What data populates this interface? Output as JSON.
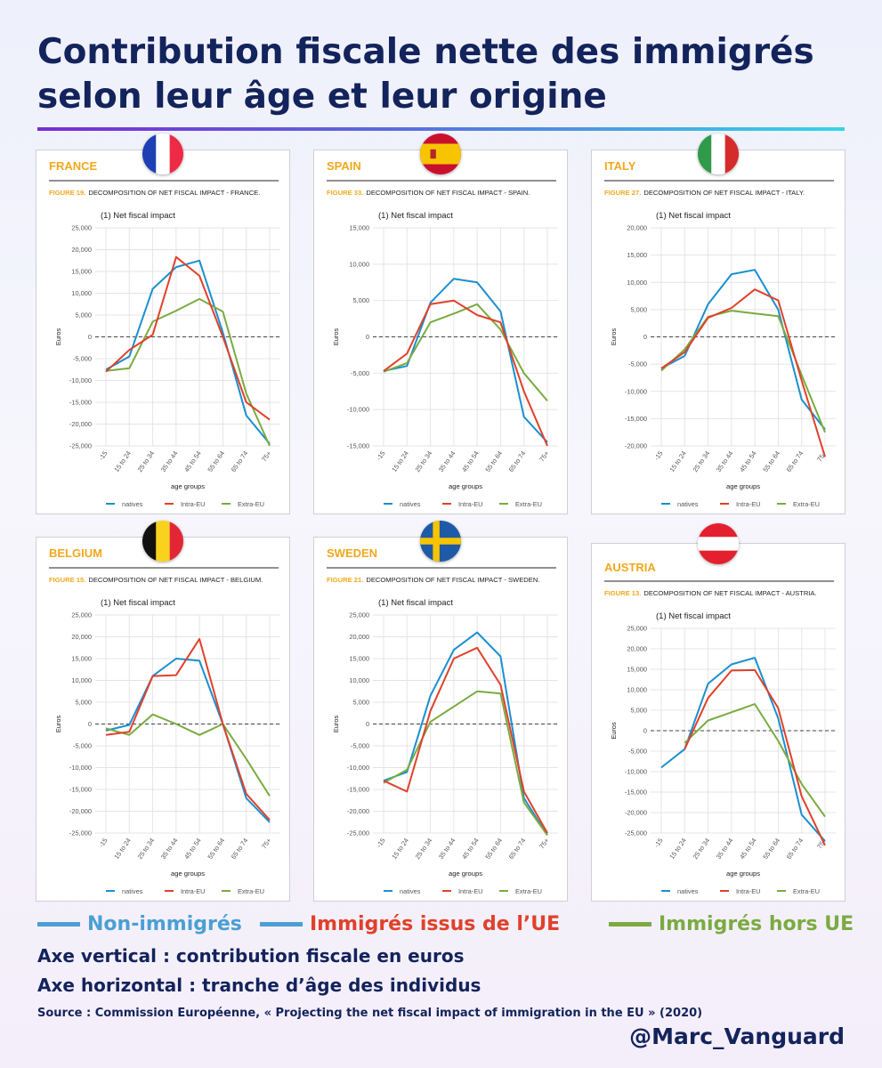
{
  "title_line1": "Contribution fiscale nette des immigrés",
  "title_line2": "selon leur âge et leur origine",
  "colors": {
    "natives": "#1a8fd0",
    "intra_eu": "#e0412a",
    "extra_eu": "#7aab41",
    "navy": "#13235b",
    "orange": "#f0a81c"
  },
  "legend": {
    "natives": "Non-immigrés",
    "intra_eu": "Immigrés issus de l’UE",
    "extra_eu": "Immigrés hors UE"
  },
  "axis_vertical": "Axe vertical : contribution fiscale en euros",
  "axis_horizontal": "Axe horizontal : tranche d’âge des individus",
  "source": "Source : Commission Européenne, « Projecting the net fiscal impact of immigration in the EU » (2020)",
  "handle": "@Marc_Vanguard",
  "chart_data": [
    {
      "type": "line",
      "country": "FRANCE",
      "flag": "france",
      "figure_number": "FIGURE 19.",
      "figure_text": "DECOMPOSITION OF NET FISCAL IMPACT - FRANCE.",
      "subtitle": "(1) Net fiscal impact",
      "ylabel": "Euros",
      "xlabel": "age groups",
      "categories": [
        "-15",
        "15 to 24",
        "25 to 34",
        "35 to 44",
        "45 to 54",
        "55 to 64",
        "65 to 74",
        "75+"
      ],
      "yticks": [
        25000,
        20000,
        15000,
        10000,
        5000,
        0,
        -5000,
        -10000,
        -15000,
        -20000,
        -25000
      ],
      "ytick_labels": [
        "25,000",
        "20,000",
        "15,000",
        "10,000",
        "5,000",
        "0",
        "-5,000",
        "-10,000",
        "-15,000",
        "-20,000",
        "-25,000"
      ],
      "ylim": [
        -25000,
        25000
      ],
      "series": [
        {
          "name": "natives",
          "values": [
            -7500,
            -4500,
            11000,
            16000,
            17500,
            1000,
            -18000,
            -24500
          ]
        },
        {
          "name": "Intra-EU",
          "values": [
            -8000,
            -3000,
            500,
            18300,
            14000,
            0,
            -15000,
            -19000
          ]
        },
        {
          "name": "Extra-EU",
          "values": [
            -7800,
            -7200,
            3500,
            6000,
            8700,
            5800,
            -13000,
            -25000
          ]
        }
      ],
      "reference_line": 0
    },
    {
      "type": "line",
      "country": "SPAIN",
      "flag": "spain",
      "figure_number": "FIGURE 33.",
      "figure_text": "DECOMPOSITION OF NET FISCAL IMPACT - SPAIN.",
      "subtitle": "(1) Net fiscal impact",
      "ylabel": "Euros",
      "xlabel": "age groups",
      "categories": [
        "-15",
        "15 to 24",
        "25 to 34",
        "35 to 44",
        "45 to 54",
        "55 to 64",
        "65 to 74",
        "75+"
      ],
      "yticks": [
        15000,
        10000,
        5000,
        0,
        -5000,
        -10000,
        -15000
      ],
      "ytick_labels": [
        "15,000",
        "10,000",
        "5,000",
        "0",
        "-5,000",
        "-10,000",
        "-15,000"
      ],
      "ylim": [
        -15000,
        15000
      ],
      "series": [
        {
          "name": "natives",
          "values": [
            -4700,
            -4000,
            4700,
            8000,
            7500,
            3500,
            -11000,
            -14500
          ]
        },
        {
          "name": "Intra-EU",
          "values": [
            -4700,
            -2300,
            4500,
            5000,
            3000,
            2000,
            -7500,
            -15000
          ]
        },
        {
          "name": "Extra-EU",
          "values": [
            -4800,
            -3600,
            2000,
            3200,
            4500,
            1000,
            -5000,
            -8800
          ]
        }
      ],
      "reference_line": 0
    },
    {
      "type": "line",
      "country": "ITALY",
      "flag": "italy",
      "figure_number": "FIGURE 27.",
      "figure_text": "DECOMPOSITION OF NET FISCAL IMPACT - ITALY.",
      "subtitle": "(1) Net fiscal impact",
      "ylabel": "Euros",
      "xlabel": "age groups",
      "categories": [
        "-15",
        "15 to 24",
        "25 to 34",
        "35 to 44",
        "45 to 54",
        "55 to 64",
        "65 to 74",
        "75+"
      ],
      "yticks": [
        20000,
        15000,
        10000,
        5000,
        0,
        -5000,
        -10000,
        -15000,
        -20000
      ],
      "ytick_labels": [
        "20,000",
        "15,000",
        "10,000",
        "5,000",
        "0",
        "-5,000",
        "-10,000",
        "-15,000",
        "-20,000"
      ],
      "ylim": [
        -20000,
        20000
      ],
      "series": [
        {
          "name": "natives",
          "values": [
            -5800,
            -3500,
            6000,
            11500,
            12300,
            5000,
            -11500,
            -17000
          ]
        },
        {
          "name": "Intra-EU",
          "values": [
            -5800,
            -2800,
            3500,
            5300,
            8700,
            6700,
            -8000,
            -22000
          ]
        },
        {
          "name": "Extra-EU",
          "values": [
            -6200,
            -2300,
            3700,
            4800,
            4300,
            3800,
            -7000,
            -17500
          ]
        }
      ],
      "reference_line": 0
    },
    {
      "type": "line",
      "country": "BELGIUM",
      "flag": "belgium",
      "figure_number": "FIGURE 15.",
      "figure_text": "DECOMPOSITION OF NET FISCAL IMPACT - BELGIUM.",
      "subtitle": "(1) Net fiscal impact",
      "ylabel": "Euros",
      "xlabel": "age groups",
      "categories": [
        "-15",
        "15 to 24",
        "25 to 34",
        "35 to 44",
        "45 to 54",
        "55 to 64",
        "65 to 74",
        "75+"
      ],
      "yticks": [
        25000,
        20000,
        15000,
        10000,
        5000,
        0,
        -5000,
        -10000,
        -15000,
        -20000,
        -25000
      ],
      "ytick_labels": [
        "25,000",
        "20,000",
        "15,000",
        "10,000",
        "5,000",
        "0",
        "-5,000",
        "-10,000",
        "-15,000",
        "-20,000",
        "-25,000"
      ],
      "ylim": [
        -25000,
        25000
      ],
      "series": [
        {
          "name": "natives",
          "values": [
            -1500,
            -200,
            11000,
            15000,
            14500,
            0,
            -17000,
            -22500
          ]
        },
        {
          "name": "Intra-EU",
          "values": [
            -2500,
            -1800,
            11000,
            11200,
            19500,
            0,
            -16000,
            -22000
          ]
        },
        {
          "name": "Extra-EU",
          "values": [
            -1000,
            -2500,
            2200,
            0,
            -2500,
            0,
            -8000,
            -16500
          ]
        }
      ],
      "reference_line": 0
    },
    {
      "type": "line",
      "country": "SWEDEN",
      "flag": "sweden",
      "figure_number": "FIGURE 21.",
      "figure_text": "DECOMPOSITION OF NET FISCAL IMPACT - SWEDEN.",
      "subtitle": "(1) Net fiscal impact",
      "ylabel": "Euros",
      "xlabel": "age groups",
      "categories": [
        "-15",
        "15 to 24",
        "25 to 34",
        "35 to 44",
        "45 to 54",
        "55 to 64",
        "65 to 74",
        "75+"
      ],
      "yticks": [
        25000,
        20000,
        15000,
        10000,
        5000,
        0,
        -5000,
        -10000,
        -15000,
        -20000,
        -25000
      ],
      "ytick_labels": [
        "25,000",
        "20,000",
        "15,000",
        "10,000",
        "5,000",
        "0",
        "-5,000",
        "-10,000",
        "-15,000",
        "-20,000",
        "-25,000"
      ],
      "ylim": [
        -25000,
        25000
      ],
      "series": [
        {
          "name": "natives",
          "values": [
            -13000,
            -11000,
            6500,
            17000,
            21000,
            15500,
            -17000,
            -25500
          ]
        },
        {
          "name": "Intra-EU",
          "values": [
            -13000,
            -15500,
            3000,
            15000,
            17500,
            9000,
            -15500,
            -25000
          ]
        },
        {
          "name": "Extra-EU",
          "values": [
            -13500,
            -10500,
            500,
            4000,
            7500,
            7000,
            -18000,
            -25500
          ]
        }
      ],
      "reference_line": 0
    },
    {
      "type": "line",
      "country": "AUSTRIA",
      "flag": "austria",
      "figure_number": "FIGURE 13.",
      "figure_text": "DECOMPOSITION OF NET FISCAL IMPACT - AUSTRIA.",
      "subtitle": "(1) Net fiscal impact",
      "ylabel": "Euros",
      "xlabel": "age groups",
      "categories": [
        "-15",
        "15 to 24",
        "25 to 34",
        "35 to 44",
        "45 to 54",
        "55 to 64",
        "65 to 74",
        "75+"
      ],
      "yticks": [
        25000,
        20000,
        15000,
        10000,
        5000,
        0,
        -5000,
        -10000,
        -15000,
        -20000,
        -25000
      ],
      "ytick_labels": [
        "25,000",
        "20,000",
        "15,000",
        "10,000",
        "5,000",
        "0",
        "-5,000",
        "-10,000",
        "-15,000",
        "-20,000",
        "-25,000"
      ],
      "ylim": [
        -25000,
        25000
      ],
      "series": [
        {
          "name": "natives",
          "values": [
            -9000,
            -4500,
            11500,
            16200,
            17800,
            3000,
            -20500,
            -27000
          ]
        },
        {
          "name": "Intra-EU",
          "values": [
            null,
            -4500,
            8000,
            14700,
            14800,
            5500,
            -16000,
            -28000
          ]
        },
        {
          "name": "Extra-EU",
          "values": [
            null,
            -3000,
            2500,
            4500,
            6500,
            -2500,
            -13000,
            -21000
          ]
        }
      ],
      "reference_line": 0
    }
  ]
}
